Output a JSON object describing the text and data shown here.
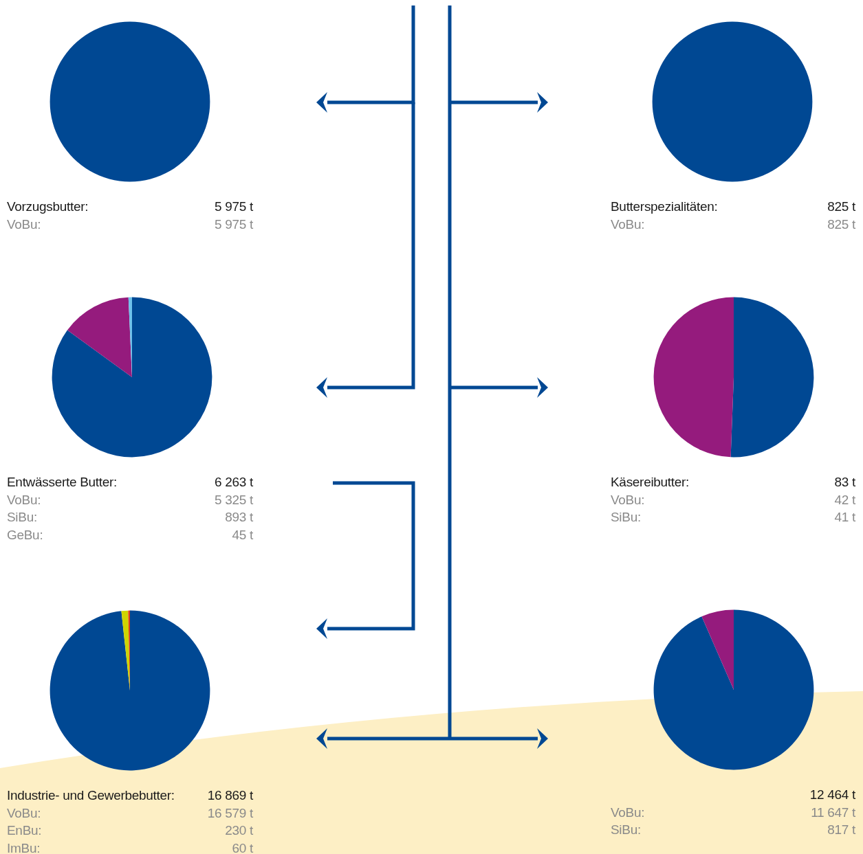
{
  "chart_data": [
    {
      "type": "pie",
      "title": "Vorzugsbutter:",
      "subtitle": "5 975 t",
      "categories": [
        null
      ],
      "values": [
        100
      ],
      "colors": [
        "#004893"
      ],
      "annotations": [
        "VoBu:",
        "5 975 t"
      ]
    },
    {
      "type": "pie",
      "title": "Butterspezialitäten:",
      "subtitle": "825 t",
      "categories": [
        null
      ],
      "values": [
        100
      ],
      "colors": [
        "#004893"
      ],
      "annotations": [
        "VoBu:",
        "825 t"
      ]
    },
    {
      "type": "pie",
      "title": "Entwässerte Butter:",
      "subtitle": "6 263 t",
      "categories": [
        null,
        null,
        null
      ],
      "values": [
        85.02,
        14.26,
        0.72
      ],
      "colors": [
        "#004893",
        "#951b7d",
        "#6ec1ea"
      ],
      "annotations": [
        "VoBu:",
        "5 325 t",
        "SiBu:",
        "893 t",
        "GeBu:",
        "45 t"
      ]
    },
    {
      "type": "pie",
      "title": "Käsereibutter:",
      "subtitle": "83 t",
      "categories": [
        null,
        null
      ],
      "values": [
        50.6,
        49.4
      ],
      "colors": [
        "#004893",
        "#951b7d"
      ],
      "annotations": [
        "VoBu:",
        "42 t",
        "SiBu:",
        "41 t"
      ]
    },
    {
      "type": "pie",
      "title": "Industrie- und Gewerbebutter:",
      "subtitle": "16 869 t",
      "categories": [
        null,
        null,
        null
      ],
      "values": [
        98.28,
        1.36,
        0.36
      ],
      "colors": [
        "#004893",
        "#cfd400",
        "#e2401a"
      ],
      "annotations": [
        "VoBu:",
        "16 579 t",
        "EnBu:",
        "230 t",
        "ImBu:",
        "60 t"
      ]
    },
    {
      "type": "pie",
      "subtitle": "12 464 t",
      "categories": [
        null,
        null
      ],
      "values": [
        93.45,
        6.55
      ],
      "colors": [
        "#004893",
        "#951b7d"
      ],
      "annotations": [
        "VoBu:",
        "11 647 t",
        "SiBu:",
        "817 t"
      ]
    }
  ]
}
